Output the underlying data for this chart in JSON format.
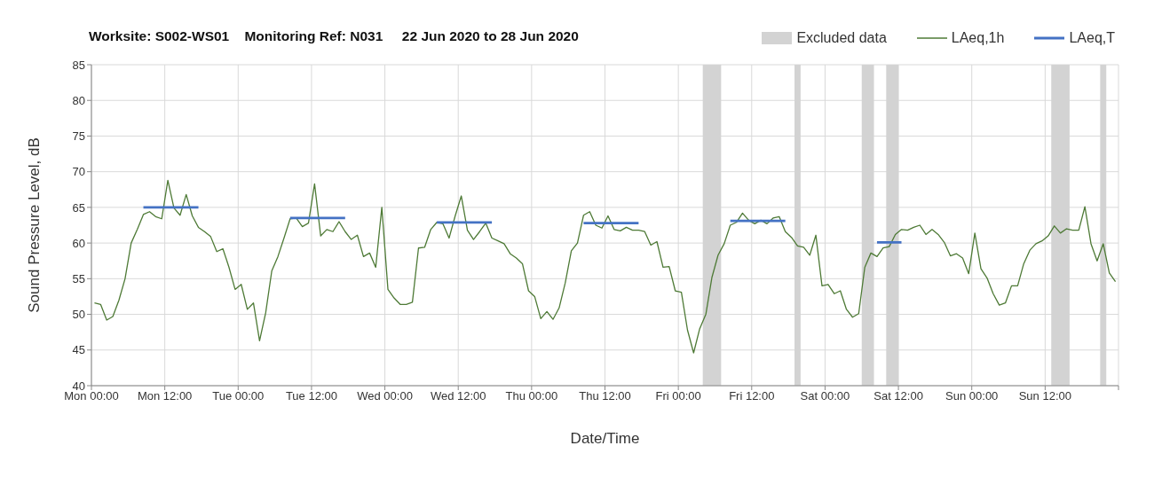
{
  "chart_data": {
    "type": "line",
    "title": "Worksite: S002-WS01    Monitoring Ref: N031     22 Jun 2020 to 28 Jun 2020",
    "xlabel": "Date/Time",
    "ylabel": "Sound Pressure Level, dB",
    "xlim": [
      "2020-06-22T00:00",
      "2020-06-29T00:00"
    ],
    "xticks": [
      {
        "value": "2020-06-22T00:00",
        "label": "Mon 00:00"
      },
      {
        "value": "2020-06-22T12:00",
        "label": "Mon 12:00"
      },
      {
        "value": "2020-06-23T00:00",
        "label": "Tue 00:00"
      },
      {
        "value": "2020-06-23T12:00",
        "label": "Tue 12:00"
      },
      {
        "value": "2020-06-24T00:00",
        "label": "Wed 00:00"
      },
      {
        "value": "2020-06-24T12:00",
        "label": "Wed 12:00"
      },
      {
        "value": "2020-06-25T00:00",
        "label": "Thu 00:00"
      },
      {
        "value": "2020-06-25T12:00",
        "label": "Thu 12:00"
      },
      {
        "value": "2020-06-26T00:00",
        "label": "Fri 00:00"
      },
      {
        "value": "2020-06-26T12:00",
        "label": "Fri 12:00"
      },
      {
        "value": "2020-06-27T00:00",
        "label": "Sat 00:00"
      },
      {
        "value": "2020-06-27T12:00",
        "label": "Sat 12:00"
      },
      {
        "value": "2020-06-28T00:00",
        "label": "Sun 00:00"
      },
      {
        "value": "2020-06-28T12:00",
        "label": "Sun 12:00"
      },
      {
        "value": "2020-06-29T00:00",
        "label": null
      }
    ],
    "ylim": [
      40,
      85
    ],
    "yticks": [
      40,
      45,
      50,
      55,
      60,
      65,
      70,
      75,
      80,
      85
    ],
    "grid": true,
    "legend": "top right",
    "marker": "none",
    "line_style": "solid",
    "bands": [
      {
        "axis": "x",
        "from": "2020-06-26T04:00",
        "to": "2020-06-26T07:00",
        "label": "Excluded data",
        "color": "#d3d3d3"
      },
      {
        "axis": "x",
        "from": "2020-06-26T19:00",
        "to": "2020-06-26T20:00",
        "color": "#d3d3d3"
      },
      {
        "axis": "x",
        "from": "2020-06-27T06:00",
        "to": "2020-06-27T08:00",
        "color": "#d3d3d3"
      },
      {
        "axis": "x",
        "from": "2020-06-27T10:00",
        "to": "2020-06-27T12:00",
        "color": "#d3d3d3"
      },
      {
        "axis": "x",
        "from": "2020-06-28T13:00",
        "to": "2020-06-28T16:00",
        "color": "#d3d3d3"
      },
      {
        "axis": "x",
        "from": "2020-06-28T21:00",
        "to": "2020-06-28T22:00",
        "color": "#d3d3d3"
      }
    ],
    "series": [
      {
        "name": "LAeq,1h",
        "color": "#4e7a36",
        "x": [
          "2020-06-22T00:30",
          "2020-06-22T01:30",
          "2020-06-22T02:30",
          "2020-06-22T03:30",
          "2020-06-22T04:30",
          "2020-06-22T05:30",
          "2020-06-22T06:30",
          "2020-06-22T07:30",
          "2020-06-22T08:30",
          "2020-06-22T09:30",
          "2020-06-22T10:30",
          "2020-06-22T11:30",
          "2020-06-22T12:30",
          "2020-06-22T13:30",
          "2020-06-22T14:30",
          "2020-06-22T15:30",
          "2020-06-22T16:30",
          "2020-06-22T17:30",
          "2020-06-22T18:30",
          "2020-06-22T19:30",
          "2020-06-22T20:30",
          "2020-06-22T21:30",
          "2020-06-22T22:30",
          "2020-06-22T23:30",
          "2020-06-23T00:30",
          "2020-06-23T01:30",
          "2020-06-23T02:30",
          "2020-06-23T03:30",
          "2020-06-23T04:30",
          "2020-06-23T05:30",
          "2020-06-23T06:30",
          "2020-06-23T07:30",
          "2020-06-23T08:30",
          "2020-06-23T09:30",
          "2020-06-23T10:30",
          "2020-06-23T11:30",
          "2020-06-23T12:30",
          "2020-06-23T13:30",
          "2020-06-23T14:30",
          "2020-06-23T15:30",
          "2020-06-23T16:30",
          "2020-06-23T17:30",
          "2020-06-23T18:30",
          "2020-06-23T19:30",
          "2020-06-23T20:30",
          "2020-06-23T21:30",
          "2020-06-23T22:30",
          "2020-06-23T23:30",
          "2020-06-24T00:30",
          "2020-06-24T01:30",
          "2020-06-24T02:30",
          "2020-06-24T03:30",
          "2020-06-24T04:30",
          "2020-06-24T05:30",
          "2020-06-24T06:30",
          "2020-06-24T07:30",
          "2020-06-24T08:30",
          "2020-06-24T09:30",
          "2020-06-24T10:30",
          "2020-06-24T11:30",
          "2020-06-24T12:30",
          "2020-06-24T13:30",
          "2020-06-24T14:30",
          "2020-06-24T15:30",
          "2020-06-24T16:30",
          "2020-06-24T17:30",
          "2020-06-24T18:30",
          "2020-06-24T19:30",
          "2020-06-24T20:30",
          "2020-06-24T21:30",
          "2020-06-24T22:30",
          "2020-06-24T23:30",
          "2020-06-25T00:30",
          "2020-06-25T01:30",
          "2020-06-25T02:30",
          "2020-06-25T03:30",
          "2020-06-25T04:30",
          "2020-06-25T05:30",
          "2020-06-25T06:30",
          "2020-06-25T07:30",
          "2020-06-25T08:30",
          "2020-06-25T09:30",
          "2020-06-25T10:30",
          "2020-06-25T11:30",
          "2020-06-25T12:30",
          "2020-06-25T13:30",
          "2020-06-25T14:30",
          "2020-06-25T15:30",
          "2020-06-25T16:30",
          "2020-06-25T17:30",
          "2020-06-25T18:30",
          "2020-06-25T19:30",
          "2020-06-25T20:30",
          "2020-06-25T21:30",
          "2020-06-25T22:30",
          "2020-06-25T23:30",
          "2020-06-26T00:30",
          "2020-06-26T01:30",
          "2020-06-26T02:30",
          "2020-06-26T03:30",
          "2020-06-26T04:30",
          "2020-06-26T05:30",
          "2020-06-26T06:30",
          "2020-06-26T07:30",
          "2020-06-26T08:30",
          "2020-06-26T09:30",
          "2020-06-26T10:30",
          "2020-06-26T11:30",
          "2020-06-26T12:30",
          "2020-06-26T13:30",
          "2020-06-26T14:30",
          "2020-06-26T15:30",
          "2020-06-26T16:30",
          "2020-06-26T17:30",
          "2020-06-26T18:30",
          "2020-06-26T19:30",
          "2020-06-26T20:30",
          "2020-06-26T21:30",
          "2020-06-26T22:30",
          "2020-06-26T23:30",
          "2020-06-27T00:30",
          "2020-06-27T01:30",
          "2020-06-27T02:30",
          "2020-06-27T03:30",
          "2020-06-27T04:30",
          "2020-06-27T05:30",
          "2020-06-27T06:30",
          "2020-06-27T07:30",
          "2020-06-27T08:30",
          "2020-06-27T09:30",
          "2020-06-27T10:30",
          "2020-06-27T11:30",
          "2020-06-27T12:30",
          "2020-06-27T13:30",
          "2020-06-27T14:30",
          "2020-06-27T15:30",
          "2020-06-27T16:30",
          "2020-06-27T17:30",
          "2020-06-27T18:30",
          "2020-06-27T19:30",
          "2020-06-27T20:30",
          "2020-06-27T21:30",
          "2020-06-27T22:30",
          "2020-06-27T23:30",
          "2020-06-28T00:30",
          "2020-06-28T01:30",
          "2020-06-28T02:30",
          "2020-06-28T03:30",
          "2020-06-28T04:30",
          "2020-06-28T05:30",
          "2020-06-28T06:30",
          "2020-06-28T07:30",
          "2020-06-28T08:30",
          "2020-06-28T09:30",
          "2020-06-28T10:30",
          "2020-06-28T11:30",
          "2020-06-28T12:30",
          "2020-06-28T13:30",
          "2020-06-28T14:30",
          "2020-06-28T15:30",
          "2020-06-28T16:30",
          "2020-06-28T17:30",
          "2020-06-28T18:30",
          "2020-06-28T19:30",
          "2020-06-28T20:30",
          "2020-06-28T21:30",
          "2020-06-28T22:30",
          "2020-06-28T23:30"
        ],
        "values": [
          51.6,
          51.4,
          49.2,
          49.7,
          52,
          55,
          60,
          61.9,
          64,
          64.4,
          63.7,
          63.4,
          68.8,
          64.9,
          63.9,
          66.8,
          63.8,
          62.2,
          61.6,
          60.9,
          58.8,
          59.2,
          56.6,
          53.5,
          54.2,
          50.7,
          51.6,
          46.3,
          50.2,
          56.1,
          58.1,
          60.7,
          63.4,
          63.5,
          62.3,
          62.8,
          68.3,
          61,
          61.9,
          61.6,
          63,
          61.6,
          60.5,
          61.1,
          58.1,
          58.6,
          56.6,
          65,
          53.5,
          52.3,
          51.4,
          51.4,
          51.7,
          59.3,
          59.4,
          61.9,
          62.9,
          62.7,
          60.7,
          63.8,
          66.6,
          61.8,
          60.5,
          61.6,
          62.8,
          60.7,
          60.3,
          59.9,
          58.5,
          57.9,
          57.1,
          53.3,
          52.5,
          49.4,
          50.4,
          49.3,
          50.9,
          54.4,
          58.9,
          60,
          63.9,
          64.4,
          62.5,
          62.1,
          63.8,
          61.9,
          61.7,
          62.2,
          61.8,
          61.8,
          61.6,
          59.7,
          60.2,
          56.6,
          56.7,
          53.3,
          53.1,
          47.8,
          44.6,
          48,
          50,
          55.2,
          58.3,
          59.9,
          62.5,
          62.9,
          64.2,
          63.2,
          62.7,
          63.2,
          62.7,
          63.5,
          63.7,
          61.6,
          60.8,
          59.6,
          59.4,
          58.3,
          61.1,
          54,
          54.2,
          52.9,
          53.3,
          50.7,
          49.6,
          50.1,
          56.6,
          58.6,
          58.1,
          59.3,
          59.5,
          61.2,
          61.9,
          61.8,
          62.2,
          62.5,
          61.2,
          61.9,
          61.2,
          60.1,
          58.2,
          58.5,
          57.9,
          55.7,
          61.4,
          56.4,
          55.1,
          52.9,
          51.3,
          51.6,
          54,
          54,
          57.1,
          59,
          59.9,
          60.3,
          61,
          62.4,
          61.4,
          62,
          61.8,
          61.8,
          65.1,
          59.9,
          57.5,
          59.9,
          55.8,
          54.6
        ]
      },
      {
        "name": "LAeq,T",
        "color": "#4472c4",
        "x": [
          "2020-06-22T08:30",
          "2020-06-22T17:30",
          "2020-06-22T20:00",
          "2020-06-23T08:30",
          "2020-06-23T17:30",
          "2020-06-23T20:00",
          "2020-06-24T08:30",
          "2020-06-24T17:30",
          "2020-06-24T20:00",
          "2020-06-25T08:30",
          "2020-06-25T17:30",
          "2020-06-25T20:00",
          "2020-06-26T08:30",
          "2020-06-26T17:30",
          "2020-06-26T20:00",
          "2020-06-27T08:30",
          "2020-06-27T12:30"
        ],
        "values": [
          65,
          65,
          null,
          63.5,
          63.5,
          null,
          62.9,
          62.9,
          null,
          62.8,
          62.8,
          null,
          63.1,
          63.1,
          null,
          60.1,
          60.1
        ]
      }
    ]
  }
}
